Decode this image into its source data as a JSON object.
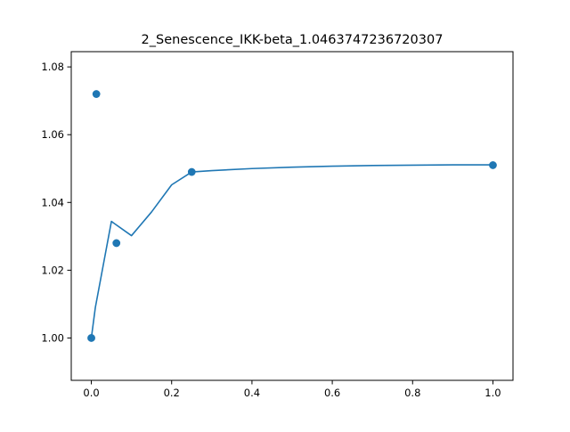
{
  "chart_data": {
    "type": "line",
    "title": "2_Senescence_IKK-beta_1.0463747236720307",
    "xlabel": "",
    "ylabel": "",
    "xlim": [
      -0.05,
      1.05
    ],
    "ylim": [
      0.9875,
      1.0845
    ],
    "xticks": [
      0.0,
      0.2,
      0.4,
      0.6,
      0.8,
      1.0
    ],
    "xtick_labels": [
      "0.0",
      "0.2",
      "0.4",
      "0.6",
      "0.8",
      "1.0"
    ],
    "yticks": [
      1.0,
      1.02,
      1.04,
      1.06,
      1.08
    ],
    "ytick_labels": [
      "1.00",
      "1.02",
      "1.04",
      "1.06",
      "1.08"
    ],
    "grid": false,
    "color": "#1f77b4",
    "series": [
      {
        "type": "line",
        "x": [
          0.0,
          0.01,
          0.05,
          0.1,
          0.15,
          0.2,
          0.25,
          0.3,
          0.4,
          0.5,
          0.6,
          0.7,
          0.8,
          0.9,
          1.0
        ],
        "y": [
          1.0,
          1.009,
          1.0344,
          1.0302,
          1.0372,
          1.0452,
          1.049,
          1.0494,
          1.05,
          1.0504,
          1.0507,
          1.0509,
          1.051,
          1.0511,
          1.0511
        ]
      },
      {
        "type": "scatter",
        "x": [
          0.0,
          0.0125,
          0.0625,
          0.25,
          1.0
        ],
        "y": [
          1.0,
          1.072,
          1.028,
          1.049,
          1.051
        ]
      }
    ]
  }
}
